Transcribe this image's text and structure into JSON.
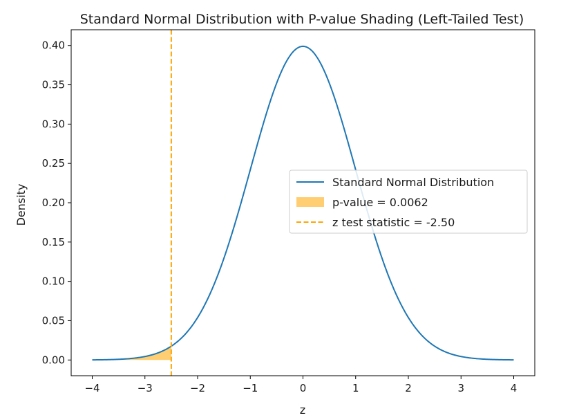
{
  "chart_data": {
    "type": "line",
    "title": "Standard Normal Distribution with P-value Shading (Left-Tailed Test)",
    "xlabel": "z",
    "ylabel": "Density",
    "xlim": [
      -4.4,
      4.4
    ],
    "ylim": [
      -0.02,
      0.42
    ],
    "x_ticks": [
      -4,
      -3,
      -2,
      -1,
      0,
      1,
      2,
      3,
      4
    ],
    "x_tick_labels": [
      "−4",
      "−3",
      "−2",
      "−1",
      "0",
      "1",
      "2",
      "3",
      "4"
    ],
    "y_ticks": [
      0.0,
      0.05,
      0.1,
      0.15,
      0.2,
      0.25,
      0.3,
      0.35,
      0.4
    ],
    "y_tick_labels": [
      "0.00",
      "0.05",
      "0.10",
      "0.15",
      "0.20",
      "0.25",
      "0.30",
      "0.35",
      "0.40"
    ],
    "grid": false,
    "legend_position": "center-right",
    "series": [
      {
        "name": "Standard Normal Distribution",
        "kind": "line",
        "color": "#1f77b4",
        "x": [
          -4,
          -3.5,
          -3,
          -2.5,
          -2,
          -1.5,
          -1,
          -0.5,
          0,
          0.5,
          1,
          1.5,
          2,
          2.5,
          3,
          3.5,
          4
        ],
        "y": [
          0.0001,
          0.0009,
          0.0044,
          0.0175,
          0.054,
          0.1295,
          0.242,
          0.3521,
          0.3989,
          0.3521,
          0.242,
          0.1295,
          0.054,
          0.0175,
          0.0044,
          0.0009,
          0.0001
        ]
      },
      {
        "name": "p-value = 0.0062",
        "kind": "area",
        "color": "#ffa500",
        "x_range": [
          -4,
          -2.5
        ]
      },
      {
        "name": "z test statistic = -2.50",
        "kind": "vline",
        "color": "#ffa500",
        "x": -2.5
      }
    ]
  }
}
